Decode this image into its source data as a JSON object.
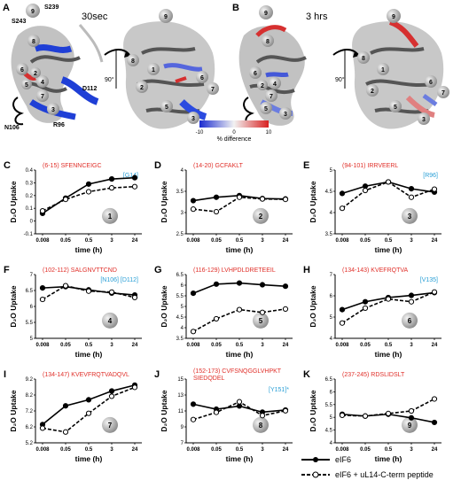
{
  "structure": {
    "panel_a": {
      "letter": "A",
      "title": "30sec"
    },
    "panel_b": {
      "letter": "B",
      "title": "3 hrs"
    },
    "labels_a": [
      "S239",
      "S243",
      "D112",
      "N106",
      "R96"
    ],
    "rotation": "90°",
    "scale": {
      "title": "% difference",
      "min": "-10",
      "mid": "0",
      "max": "10",
      "colors": [
        "#1a2bd0",
        "#f2f2f2",
        "#d82020"
      ]
    }
  },
  "legend": [
    {
      "label": "eIF6",
      "style": "solid"
    },
    {
      "label": "eIF6 + uL14-C-term peptide",
      "style": "dashed"
    }
  ],
  "chart_data": [
    {
      "type": "line",
      "letter": "C",
      "title": "(6-15) SFENNCEIGC",
      "site": "[G14]",
      "region": "1",
      "x": [
        "0.008",
        "0.05",
        "0.5",
        "3",
        "24"
      ],
      "yticks": [
        "0.4",
        "0.3",
        "0.2",
        "0.1",
        "0",
        "-0.1"
      ],
      "ylim": [
        -0.1,
        0.4
      ],
      "ylabel": "D₂O Uptake",
      "xlabel": "time (h)",
      "series": [
        {
          "name": "eIF6",
          "values": [
            0.06,
            0.18,
            0.29,
            0.33,
            0.34
          ]
        },
        {
          "name": "eIF6 + uL14-C-term peptide",
          "values": [
            0.08,
            0.17,
            0.23,
            0.26,
            0.27
          ]
        }
      ]
    },
    {
      "type": "line",
      "letter": "D",
      "title": "(14-20) GCFAKLT",
      "site": "",
      "region": "2",
      "x": [
        "0.008",
        "0.05",
        "0.5",
        "3",
        "24"
      ],
      "yticks": [
        "4",
        "3.5",
        "3",
        "2.5"
      ],
      "ylim": [
        2.5,
        4
      ],
      "ylabel": "D₂O Uptake",
      "xlabel": "time (h)",
      "series": [
        {
          "name": "eIF6",
          "values": [
            3.28,
            3.36,
            3.4,
            3.33,
            3.32
          ]
        },
        {
          "name": "eIF6 + uL14-C-term peptide",
          "values": [
            3.08,
            3.02,
            3.36,
            3.32,
            3.31
          ]
        }
      ]
    },
    {
      "type": "line",
      "letter": "E",
      "title": "(94-101) IRRVEERL",
      "site": "[R96]",
      "region": "3",
      "x": [
        "0.008",
        "0.05",
        "0.5",
        "3",
        "24"
      ],
      "yticks": [
        "5",
        "4.5",
        "4",
        "3.5"
      ],
      "ylim": [
        3.5,
        5
      ],
      "ylabel": "D₂O Uptake",
      "xlabel": "time (h)",
      "series": [
        {
          "name": "eIF6",
          "values": [
            4.45,
            4.62,
            4.72,
            4.56,
            4.48
          ]
        },
        {
          "name": "eIF6 + uL14-C-term peptide",
          "values": [
            4.1,
            4.52,
            4.72,
            4.36,
            4.55
          ]
        }
      ]
    },
    {
      "type": "line",
      "letter": "F",
      "title": "(102-112) SALGNVTTCND",
      "site": "[N106]   [D112]",
      "region": "4",
      "x": [
        "0.008",
        "0.05",
        "0.5",
        "3",
        "24"
      ],
      "yticks": [
        "7",
        "6.5",
        "6",
        "5.5",
        "5"
      ],
      "ylim": [
        5,
        7
      ],
      "ylabel": "D₂O Uptake",
      "xlabel": "time (h)",
      "series": [
        {
          "name": "eIF6",
          "values": [
            6.58,
            6.62,
            6.52,
            6.42,
            6.36
          ]
        },
        {
          "name": "eIF6 + uL14-C-term peptide",
          "values": [
            6.22,
            6.65,
            6.48,
            6.45,
            6.28
          ]
        }
      ]
    },
    {
      "type": "line",
      "letter": "G",
      "title": "(116-129) LVHPDLDRETEEIL",
      "site": "",
      "region": "5",
      "x": [
        "0.008",
        "0.05",
        "0.5",
        "3",
        "24"
      ],
      "yticks": [
        "6.5",
        "6",
        "5.5",
        "5",
        "4.5",
        "4",
        "3.5"
      ],
      "ylim": [
        3.5,
        6.5
      ],
      "ylabel": "D₂O Uptake",
      "xlabel": "time (h)",
      "series": [
        {
          "name": "eIF6",
          "values": [
            5.62,
            6.05,
            6.1,
            6.02,
            5.95
          ]
        },
        {
          "name": "eIF6 + uL14-C-term peptide",
          "values": [
            3.82,
            4.42,
            4.85,
            4.72,
            4.88
          ]
        }
      ]
    },
    {
      "type": "line",
      "letter": "H",
      "title": "(134-143) KVEFRQTVA",
      "site": "[V135]",
      "region": "6",
      "x": [
        "0.008",
        "0.05",
        "0.5",
        "3",
        "24"
      ],
      "yticks": [
        "7",
        "6",
        "5",
        "4"
      ],
      "ylim": [
        4,
        7
      ],
      "ylabel": "D₂O Uptake",
      "xlabel": "time (h)",
      "series": [
        {
          "name": "eIF6",
          "values": [
            5.35,
            5.72,
            5.92,
            6.02,
            6.15
          ]
        },
        {
          "name": "eIF6 + uL14-C-term peptide",
          "values": [
            4.72,
            5.42,
            5.85,
            5.72,
            6.18
          ]
        }
      ]
    },
    {
      "type": "line",
      "letter": "I",
      "title": "(134-147) KVEVFRQTVADQVL",
      "site": "",
      "region": "7",
      "x": [
        "0.008",
        "0.05",
        "0.5",
        "3",
        "24"
      ],
      "yticks": [
        "9.2",
        "8.2",
        "7.2",
        "6.2",
        "5.2"
      ],
      "ylim": [
        5.2,
        9.2
      ],
      "ylabel": "D₂O Uptake",
      "xlabel": "time (h)",
      "series": [
        {
          "name": "eIF6",
          "values": [
            6.35,
            7.52,
            7.9,
            8.45,
            8.82
          ]
        },
        {
          "name": "eIF6 + uL14-C-term peptide",
          "values": [
            6.12,
            5.88,
            7.05,
            8.12,
            8.68
          ]
        }
      ]
    },
    {
      "type": "line",
      "letter": "J",
      "title": "(152-173) CVFSNQGGLVHPKT SIEDQDEL",
      "site": "[Y151]*",
      "region": "8",
      "x": [
        "0.008",
        "0.05",
        "0.5",
        "3",
        "24"
      ],
      "yticks": [
        "15",
        "13",
        "11",
        "9",
        "7"
      ],
      "ylim": [
        7,
        15
      ],
      "ylabel": "D₂O Uptake",
      "xlabel": "time (h)",
      "series": [
        {
          "name": "eIF6",
          "values": [
            11.85,
            11.22,
            11.62,
            10.85,
            11.12
          ]
        },
        {
          "name": "eIF6 + uL14-C-term peptide",
          "values": [
            9.92,
            10.82,
            12.15,
            10.42,
            11.02
          ]
        }
      ]
    },
    {
      "type": "line",
      "letter": "K",
      "title": "(237-245) RDSLIDSLT",
      "site": "",
      "region": "9",
      "x": [
        "0.008",
        "0.05",
        "0.5",
        "3",
        "24"
      ],
      "yticks": [
        "6.5",
        "6",
        "5.5",
        "5",
        "4.5",
        "4"
      ],
      "ylim": [
        4,
        6.5
      ],
      "ylabel": "D₂O Uptake",
      "xlabel": "time (h)",
      "series": [
        {
          "name": "eIF6",
          "values": [
            5.12,
            5.05,
            5.12,
            4.98,
            4.8
          ]
        },
        {
          "name": "eIF6 + uL14-C-term peptide",
          "values": [
            5.08,
            5.05,
            5.15,
            5.25,
            5.72
          ]
        }
      ]
    }
  ]
}
